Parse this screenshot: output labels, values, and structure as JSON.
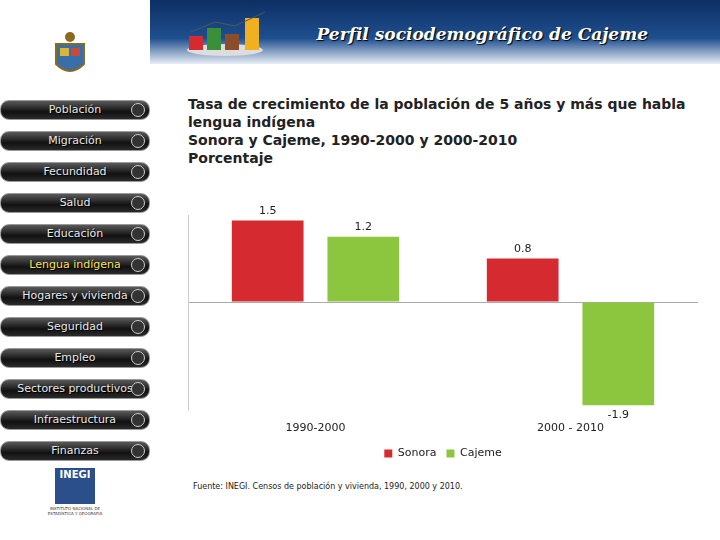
{
  "page": {
    "header": "Perfil sociodemográfico de Cajeme",
    "menu": [
      "Población",
      "Migración",
      "Fecundidad",
      "Salud",
      "Educación",
      "Lengua indígena",
      "Hogares y vivienda",
      "Seguridad",
      "Empleo",
      "Sectores productivos",
      "Infraestructura",
      "Finanzas"
    ],
    "active": "Lengua indígena",
    "logo": "INEGI",
    "logo_sub": "INSTITUTO NACIONAL DE ESTADÍSTICA Y GEOGRAFÍA"
  },
  "chart_data": {
    "type": "bar",
    "title": "Tasa de crecimiento de la población de 5 años y más que habla lengua indígena",
    "subtitle": [
      "Sonora y Cajeme, 1990-2000 y 2000-2010",
      "Porcentaje"
    ],
    "categories": [
      "1990-2000",
      "2000 - 2010"
    ],
    "series": [
      {
        "name": "Sonora",
        "color": "#d42a30",
        "values": [
          1.5,
          0.8
        ]
      },
      {
        "name": "Cajeme",
        "color": "#8cc63e",
        "values": [
          1.2,
          -1.9
        ]
      }
    ],
    "ylim": [
      -2,
      1.6
    ],
    "yticks": [
      0
    ],
    "grid": true,
    "tick_labels": "x",
    "legend": "bottom",
    "data_labels": true,
    "source": "Fuente: INEGI. Censos de población y vivienda, 1990, 2000 y 2010."
  }
}
